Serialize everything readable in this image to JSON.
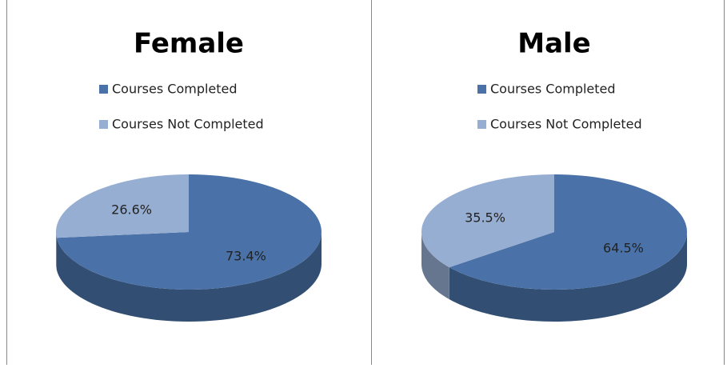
{
  "chart_data": [
    {
      "type": "pie",
      "title": "Female",
      "categories": [
        "Courses Completed",
        "Courses Not Completed"
      ],
      "values": [
        73.4,
        26.6
      ],
      "value_labels": [
        "73.4%",
        "26.6%"
      ],
      "colors": [
        "#4a72a8",
        "#97aed3"
      ],
      "legend": "top"
    },
    {
      "type": "pie",
      "title": "Male",
      "categories": [
        "Courses Completed",
        "Courses Not Completed"
      ],
      "values": [
        64.5,
        35.5
      ],
      "value_labels": [
        "64.5%",
        "35.5%"
      ],
      "colors": [
        "#4a72a8",
        "#97aed3"
      ],
      "legend": "top"
    }
  ]
}
